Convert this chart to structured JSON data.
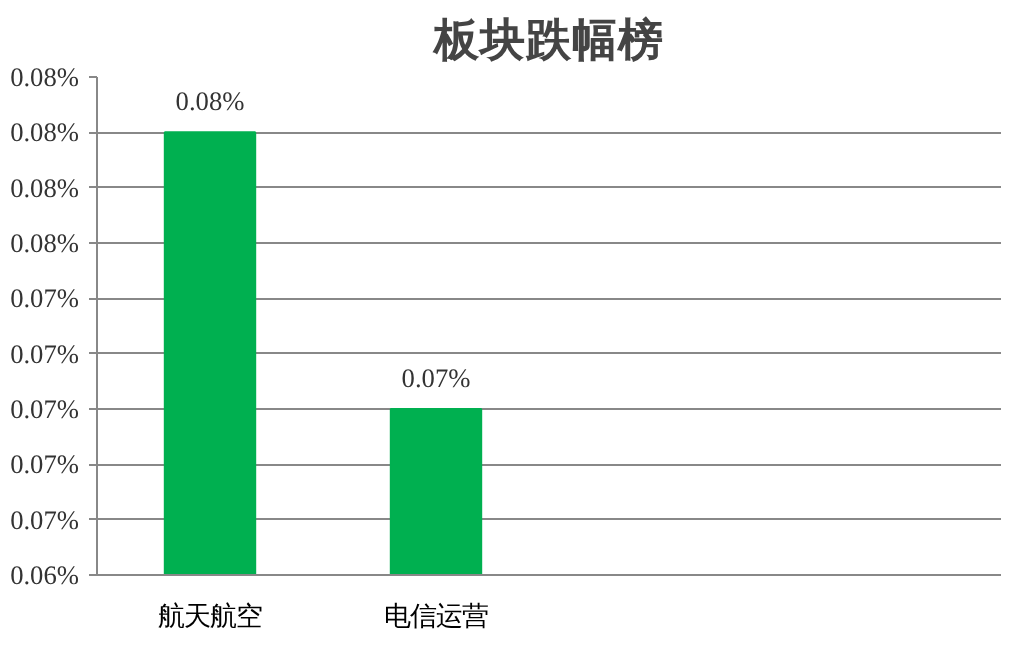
{
  "chart_data": {
    "type": "bar",
    "title": "板块跌幅榜",
    "categories": [
      "航天航空",
      "电信运营",
      null,
      null
    ],
    "values": [
      0.08,
      0.07,
      null,
      null
    ],
    "value_labels": [
      "0.08%",
      "0.07%",
      null,
      null
    ],
    "color": "#00b050",
    "ylim": [
      0.064,
      0.082
    ],
    "yticks": [
      {
        "value": 0.064,
        "label": "0.06%"
      },
      {
        "value": 0.066,
        "label": "0.07%"
      },
      {
        "value": 0.068,
        "label": "0.07%"
      },
      {
        "value": 0.07,
        "label": "0.07%"
      },
      {
        "value": 0.072,
        "label": "0.07%"
      },
      {
        "value": 0.074,
        "label": "0.07%"
      },
      {
        "value": 0.076,
        "label": "0.08%"
      },
      {
        "value": 0.078,
        "label": "0.08%"
      },
      {
        "value": 0.08,
        "label": "0.08%"
      },
      {
        "value": 0.082,
        "label": "0.08%"
      }
    ],
    "grid": "y"
  }
}
